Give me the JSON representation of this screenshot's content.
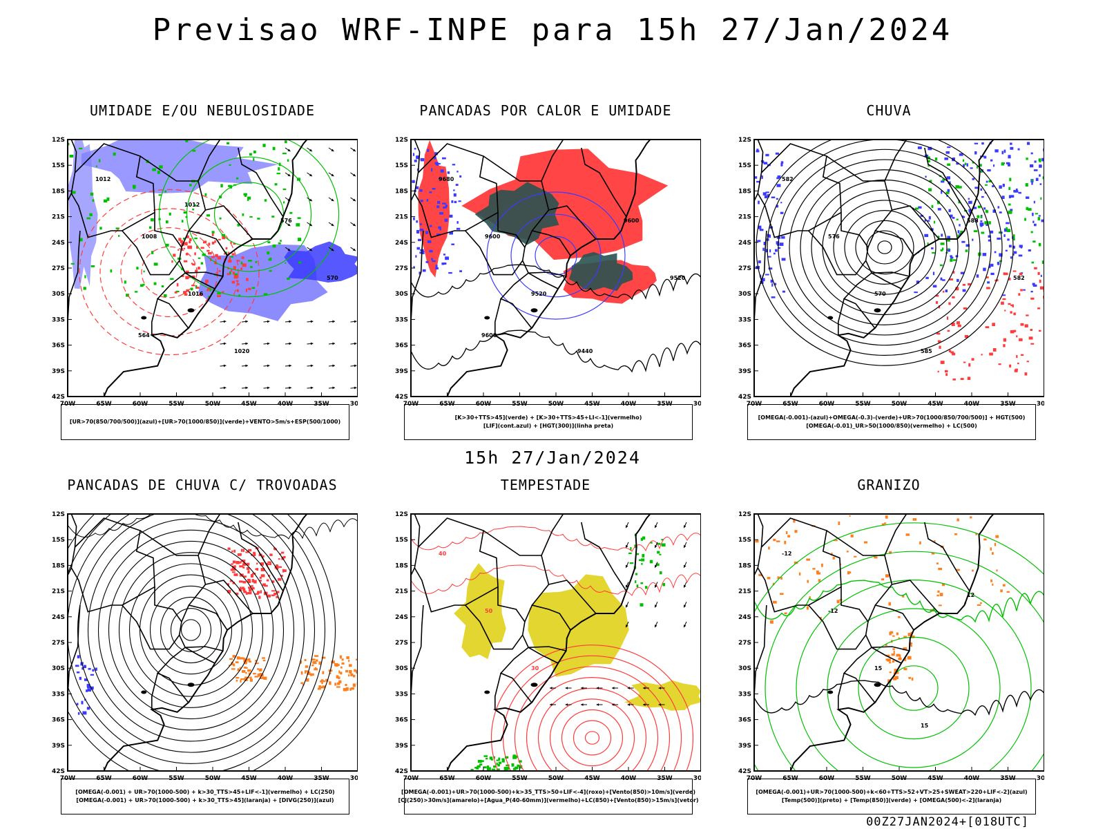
{
  "title": "Previsao WRF-INPE  para 15h 27/Jan/2024",
  "mid_date": "15h 27/Jan/2024",
  "footer": "00Z27JAN2024+[018UTC]",
  "lat_labels": [
    "12S",
    "15S",
    "18S",
    "21S",
    "24S",
    "27S",
    "30S",
    "33S",
    "36S",
    "39S",
    "42S"
  ],
  "lon_labels": [
    "70W",
    "65W",
    "60W",
    "55W",
    "50W",
    "45W",
    "40W",
    "35W",
    "30W"
  ],
  "colors": {
    "blue": "#3b3bff",
    "lightblue": "#8080ff",
    "green": "#00c000",
    "red": "#ff3b3b",
    "darkteal": "#2a5250",
    "yellow": "#e0d21a",
    "orange": "#ff7f1e"
  },
  "panels": [
    {
      "title": "UMIDADE E/OU NEBULOSIDADE",
      "legend": [
        "[UR>70(850/700/500)](azul)+[UR>70(1000/850)](verde)+VENTO>5m/s+ESP(500/1000)"
      ],
      "contour_labels": [
        "1012",
        "1008",
        "1016",
        "1020",
        "576",
        "570",
        "564",
        "1012"
      ]
    },
    {
      "title": "PANCADAS POR CALOR E UMIDADE",
      "legend": [
        "[K>30+TTS>45](verde) + [K>30+TTS>45+LI<-1](vermelho)",
        "[LIF](cont.azul) + [HGT(300)](linha preta)"
      ],
      "contour_labels": [
        "9680",
        "9600",
        "9520",
        "9440",
        "9600",
        "9520",
        "9600"
      ]
    },
    {
      "title": "CHUVA",
      "legend": [
        "[OMEGA(-0.001)-(azul)+OMEGA(-0.3)-(verde)+UR>70(1000/850/700/500)] + HGT(500)",
        "[OMEGA(-0.01)_UR>50(1000/850)(vermelho) + LC(500)"
      ],
      "contour_labels": [
        "582",
        "576",
        "570",
        "585",
        "588",
        "582"
      ]
    },
    {
      "title": "PANCADAS DE CHUVA C/ TROVOADAS",
      "legend": [
        "[OMEGA(-0.001) + UR>70(1000-500) + k>30_TTS>45+LIF<-1](vermelho) + LC(250)",
        "[OMEGA(-0.001) + UR>70(1000-500) + k>30_TTS>45](laranja) + [DIVG(250)](azul)"
      ],
      "contour_labels": []
    },
    {
      "title": "TEMPESTADE",
      "legend": [
        "[OMEGA(-0.001)+UR>70(1000-500)+k>35_TTS>50+LIF<-4](roxo)+[Vento(850)>10m/s](verde)",
        "[CJ(250)>30m/s](amarelo)+[Agua_P(40-60mm)](vermelho)+LC(850)+[Vento(850)>15m/s](vetor)"
      ],
      "contour_labels": [
        "40",
        "50",
        "30"
      ]
    },
    {
      "title": "GRANIZO",
      "legend": [
        "[OMEGA(-0.001)+UR>70(1000-500)+k<60+TTS>52+VT>25+SWEAT>220+LIF<-2](azul)",
        "[Temp(500)](preto) + [Temp(850)](verde) + [OMEGA(500)<-2](laranja)"
      ],
      "contour_labels": [
        "-12",
        "-12",
        "15",
        "15",
        "12"
      ]
    }
  ]
}
